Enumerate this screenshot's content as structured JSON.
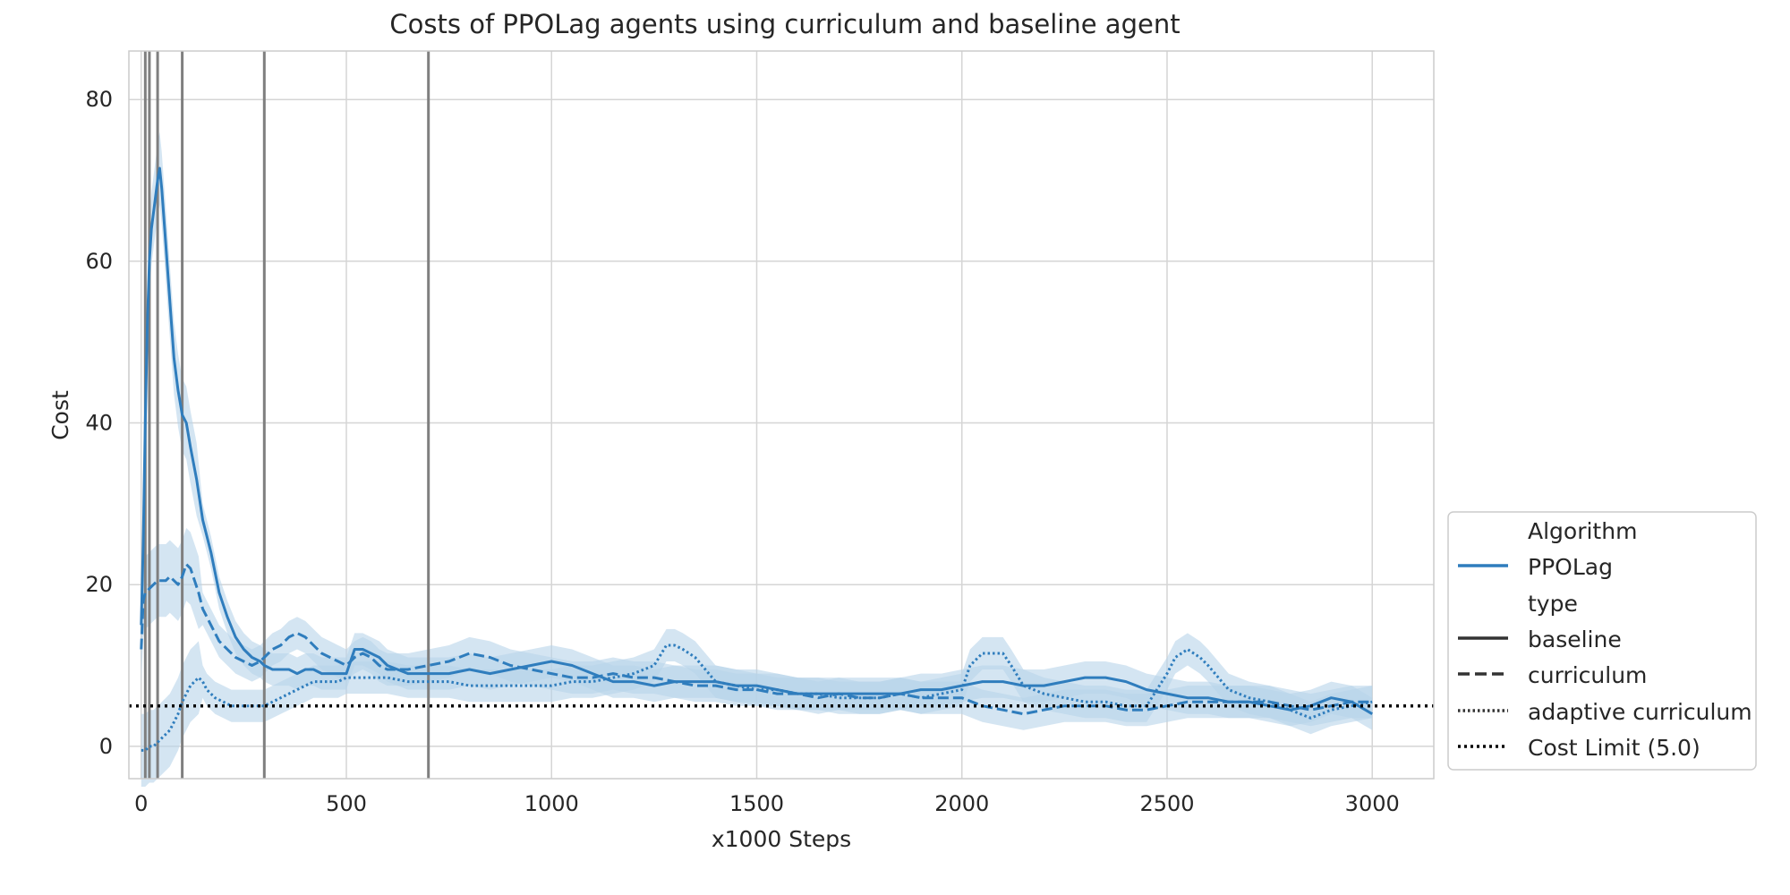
{
  "chart_data": {
    "type": "line",
    "title": "Costs of PPOLag agents using curriculum and baseline agent",
    "xlabel": "x1000 Steps",
    "ylabel": "Cost",
    "xlim": [
      -30,
      3150
    ],
    "ylim": [
      -4,
      86
    ],
    "xticks": [
      0,
      500,
      1000,
      1500,
      2000,
      2500,
      3000
    ],
    "yticks": [
      0,
      20,
      40,
      60,
      80
    ],
    "grid": true,
    "legend_position": "lower-right outside",
    "colors": {
      "series": "#2f7dbd",
      "band": "#b7d3ea",
      "marker": "#7f7f7f",
      "limit": "#000000",
      "grid": "#d5d5d5"
    },
    "legend": {
      "group1_title": "Algorithm",
      "algorithm": "PPOLag",
      "group2_title": "type",
      "types": [
        "baseline",
        "curriculum",
        "adaptive curriculum"
      ],
      "limit_label": "Cost Limit (5.0)"
    },
    "cost_limit": 5.0,
    "curriculum_marks": [
      10,
      20,
      40,
      100,
      300,
      700
    ],
    "series": [
      {
        "name": "baseline",
        "style": "solid",
        "x": [
          0,
          5,
          10,
          15,
          20,
          25,
          30,
          35,
          40,
          45,
          50,
          60,
          70,
          80,
          90,
          100,
          110,
          120,
          135,
          150,
          170,
          190,
          210,
          230,
          250,
          270,
          290,
          300,
          320,
          340,
          360,
          380,
          400,
          420,
          440,
          460,
          480,
          500,
          520,
          540,
          560,
          580,
          600,
          650,
          700,
          750,
          800,
          850,
          900,
          950,
          1000,
          1050,
          1100,
          1150,
          1200,
          1250,
          1300,
          1350,
          1400,
          1450,
          1500,
          1550,
          1600,
          1650,
          1700,
          1750,
          1800,
          1850,
          1900,
          1950,
          2000,
          2050,
          2100,
          2150,
          2200,
          2250,
          2300,
          2350,
          2400,
          2450,
          2500,
          2550,
          2600,
          2650,
          2700,
          2750,
          2800,
          2850,
          2900,
          2950,
          3000
        ],
        "y": [
          15,
          25,
          40,
          52,
          60,
          64,
          66,
          68,
          70,
          71.5,
          69,
          62,
          55,
          48,
          44,
          41,
          40,
          37,
          33,
          28,
          24,
          19,
          16,
          13.5,
          12,
          11,
          10.5,
          10,
          9.5,
          9.5,
          9.5,
          9,
          9.5,
          9.5,
          9,
          9,
          9,
          9,
          12,
          12,
          11.5,
          11,
          10,
          9,
          9,
          9,
          9.5,
          9,
          9.5,
          10,
          10.5,
          10,
          9,
          8,
          8,
          7.5,
          8,
          8,
          8,
          7.5,
          7.5,
          7,
          6.5,
          6.5,
          6.5,
          6.5,
          6.5,
          6.5,
          7,
          7,
          7.5,
          8,
          8,
          7.5,
          7.5,
          8,
          8.5,
          8.5,
          8,
          7,
          6.5,
          6,
          6,
          5.5,
          5.5,
          5,
          4.5,
          5,
          6,
          5.5,
          4
        ]
      },
      {
        "name": "curriculum",
        "style": "dashed",
        "x": [
          0,
          5,
          10,
          20,
          30,
          40,
          50,
          60,
          70,
          80,
          90,
          100,
          110,
          120,
          130,
          140,
          150,
          170,
          190,
          210,
          230,
          250,
          270,
          290,
          300,
          320,
          340,
          360,
          380,
          400,
          420,
          440,
          460,
          480,
          500,
          520,
          540,
          560,
          580,
          600,
          650,
          700,
          750,
          800,
          850,
          900,
          950,
          1000,
          1050,
          1100,
          1150,
          1200,
          1250,
          1300,
          1350,
          1400,
          1450,
          1500,
          1550,
          1600,
          1650,
          1700,
          1750,
          1800,
          1850,
          1900,
          1950,
          2000,
          2050,
          2100,
          2150,
          2200,
          2250,
          2300,
          2350,
          2400,
          2450,
          2500,
          2550,
          2600,
          2650,
          2700,
          2750,
          2800,
          2850,
          2900,
          2950,
          3000
        ],
        "y": [
          12,
          18,
          19,
          19.5,
          20,
          20.5,
          20.5,
          20.5,
          21,
          20.5,
          20,
          21,
          22.5,
          22,
          20.5,
          19,
          17,
          15,
          13,
          12,
          11,
          10.5,
          10,
          10.5,
          11,
          12,
          12.5,
          13.5,
          14,
          13.5,
          12.5,
          11.5,
          11,
          10.5,
          10,
          11,
          11.5,
          11,
          10,
          9.5,
          9.5,
          10,
          10.5,
          11.5,
          11,
          10,
          9.5,
          9,
          8.5,
          8.5,
          9,
          8.5,
          8.5,
          8,
          7.5,
          7.5,
          7,
          7,
          6.5,
          6.5,
          6,
          6.5,
          6,
          6,
          6.5,
          6,
          6,
          6,
          5,
          4.5,
          4,
          4.5,
          5,
          5,
          5,
          4.5,
          4.5,
          5,
          5.5,
          5.5,
          5.5,
          5.5,
          5.5,
          5,
          4.5,
          5,
          5.5,
          5.5
        ]
      },
      {
        "name": "adaptive curriculum",
        "style": "dotted",
        "x": [
          0,
          10,
          20,
          30,
          40,
          50,
          60,
          70,
          80,
          90,
          100,
          110,
          120,
          130,
          140,
          150,
          160,
          180,
          200,
          220,
          240,
          260,
          280,
          300,
          320,
          340,
          360,
          380,
          400,
          420,
          440,
          460,
          480,
          500,
          550,
          600,
          650,
          700,
          750,
          800,
          850,
          900,
          950,
          1000,
          1050,
          1100,
          1150,
          1200,
          1250,
          1280,
          1300,
          1320,
          1350,
          1400,
          1450,
          1500,
          1550,
          1600,
          1650,
          1700,
          1750,
          1800,
          1850,
          1900,
          1950,
          2000,
          2020,
          2050,
          2080,
          2100,
          2120,
          2150,
          2200,
          2250,
          2300,
          2350,
          2400,
          2450,
          2500,
          2520,
          2550,
          2580,
          2600,
          2650,
          2700,
          2750,
          2800,
          2850,
          2900,
          2950,
          3000
        ],
        "y": [
          -0.5,
          -0.5,
          0,
          0,
          0.5,
          1,
          1.5,
          2,
          3,
          4,
          5.5,
          6.5,
          7.5,
          8,
          8.5,
          8,
          7,
          6,
          5.5,
          5,
          5,
          5,
          5,
          5,
          5.5,
          6,
          6.5,
          7,
          7.5,
          8,
          8,
          8,
          8,
          8.5,
          8.5,
          8.5,
          8,
          8,
          8,
          7.5,
          7.5,
          7.5,
          7.5,
          7.5,
          8,
          8,
          8.5,
          9,
          10,
          12.5,
          12.5,
          12,
          11,
          8,
          7.5,
          7,
          7,
          6.5,
          6.5,
          6,
          6,
          6,
          6.5,
          6,
          6.5,
          7,
          10,
          11.5,
          11.5,
          11.5,
          10,
          7.5,
          6.5,
          6,
          5.5,
          5.5,
          5,
          5,
          9,
          11,
          12,
          11,
          10,
          7,
          6,
          5.5,
          4.5,
          3.5,
          4.5,
          5,
          5.5
        ]
      }
    ]
  }
}
